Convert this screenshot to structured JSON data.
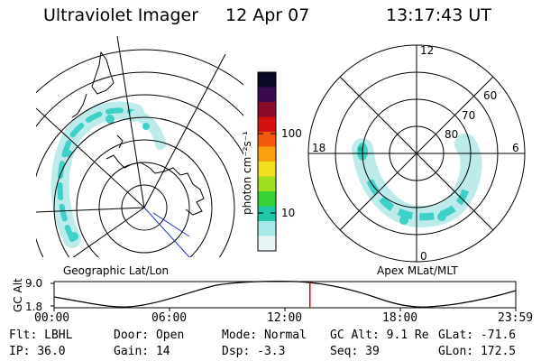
{
  "header": {
    "title": "Ultraviolet Imager",
    "date": "12 Apr 07",
    "time": "13:17:43 UT"
  },
  "left_panel": {
    "caption": "Geographic Lat/Lon"
  },
  "right_panel": {
    "caption": "Apex MLat/MLT",
    "mlt_labels": {
      "top": "12",
      "bottom": "0",
      "left": "18",
      "right": "6"
    },
    "lat_labels": [
      "60",
      "70",
      "80"
    ]
  },
  "colorbar": {
    "unit_label": "photon cm⁻²s⁻¹",
    "ticks": [
      "100",
      "10"
    ],
    "colors": [
      "#0a0a28",
      "#3a0a50",
      "#8a0a2a",
      "#d41010",
      "#f05a0a",
      "#f8a010",
      "#f0e020",
      "#a0e020",
      "#38d238",
      "#20c8a8",
      "#a8e8e8",
      "#e8f4f4"
    ]
  },
  "altitude_plot": {
    "ylabel": "GC Alt",
    "yticks": [
      "9.0",
      "1.8"
    ],
    "xticks": [
      "00:00",
      "06:00",
      "12:00",
      "18:00",
      "23:59"
    ],
    "marker_time_hours": 13.3
  },
  "info": {
    "row1": [
      {
        "label": "Flt:",
        "value": "LBHL"
      },
      {
        "label": "Door:",
        "value": "Open"
      },
      {
        "label": "Mode:",
        "value": "Normal"
      },
      {
        "label": "GC Alt:",
        "value": "9.1 Re"
      },
      {
        "label": "GLat:",
        "value": "-71.6"
      }
    ],
    "row2": [
      {
        "label": "IP:",
        "value": "36.0"
      },
      {
        "label": "Gain:",
        "value": "14"
      },
      {
        "label": "Dsp:",
        "value": "-3.3"
      },
      {
        "label": "Seq:",
        "value": "39"
      },
      {
        "label": "GLon:",
        "value": "172.5"
      }
    ]
  },
  "colors": {
    "aurora_cyan": "#3fd0c8",
    "aurora_light": "#bdebeb",
    "marker_red": "#e00000",
    "track_blue": "#2030c0"
  }
}
